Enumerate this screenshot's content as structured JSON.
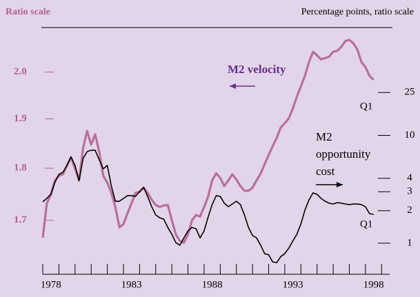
{
  "chart_data": {
    "type": "line",
    "left_axis_label": "Ratio scale",
    "right_axis_label": "Percentage points, ratio scale",
    "annotations": [
      "Q1",
      "Q1"
    ],
    "x": [
      1978,
      1978.25,
      1978.5,
      1978.75,
      1979,
      1979.25,
      1979.5,
      1979.75,
      1980,
      1980.25,
      1980.5,
      1980.75,
      1981,
      1981.25,
      1981.5,
      1981.75,
      1982,
      1982.25,
      1982.5,
      1982.75,
      1983,
      1983.25,
      1983.5,
      1983.75,
      1984,
      1984.25,
      1984.5,
      1984.75,
      1985,
      1985.25,
      1985.5,
      1985.75,
      1986,
      1986.25,
      1986.5,
      1986.75,
      1987,
      1987.25,
      1987.5,
      1987.75,
      1988,
      1988.25,
      1988.5,
      1988.75,
      1989,
      1989.25,
      1989.5,
      1989.75,
      1990,
      1990.25,
      1990.5,
      1990.75,
      1991,
      1991.25,
      1991.5,
      1991.75,
      1992,
      1992.25,
      1992.5,
      1992.75,
      1993,
      1993.25,
      1993.5,
      1993.75,
      1994,
      1994.25,
      1994.5,
      1994.75,
      1995,
      1995.25,
      1995.5,
      1995.75,
      1996,
      1996.25,
      1996.5,
      1996.75,
      1997,
      1997.25,
      1997.5,
      1997.75,
      1998,
      1998.25,
      1998.5
    ],
    "series": [
      {
        "name": "M2 velocity",
        "color": "#b86f9a",
        "axis": "y",
        "values": [
          1.668,
          1.732,
          1.748,
          1.776,
          1.785,
          1.788,
          1.805,
          1.822,
          1.799,
          1.776,
          1.84,
          1.875,
          1.847,
          1.868,
          1.833,
          1.785,
          1.772,
          1.752,
          1.725,
          1.687,
          1.693,
          1.713,
          1.732,
          1.752,
          1.754,
          1.762,
          1.752,
          1.739,
          1.729,
          1.725,
          1.728,
          1.729,
          1.7,
          1.674,
          1.662,
          1.659,
          1.674,
          1.7,
          1.71,
          1.707,
          1.725,
          1.745,
          1.776,
          1.79,
          1.781,
          1.765,
          1.776,
          1.788,
          1.778,
          1.765,
          1.756,
          1.756,
          1.762,
          1.776,
          1.789,
          1.808,
          1.826,
          1.844,
          1.861,
          1.882,
          1.891,
          1.901,
          1.922,
          1.947,
          1.969,
          1.992,
          2.022,
          2.045,
          2.037,
          2.028,
          2.031,
          2.034,
          2.045,
          2.047,
          2.056,
          2.069,
          2.072,
          2.064,
          2.05,
          2.022,
          2.011,
          1.992,
          1.983
        ]
      },
      {
        "name": "M2 opportunity cost",
        "color": "#000000",
        "axis": "y2",
        "values": [
          2.42,
          2.6,
          2.84,
          3.65,
          4.35,
          4.55,
          5.27,
          6.29,
          5.27,
          3.81,
          6.1,
          7.07,
          7.28,
          7.28,
          5.93,
          4.89,
          5.27,
          3.39,
          2.45,
          2.45,
          2.6,
          2.76,
          2.76,
          2.72,
          3.01,
          3.29,
          2.72,
          2.18,
          1.83,
          1.72,
          1.67,
          1.4,
          1.21,
          1.01,
          0.96,
          1.12,
          1.3,
          1.4,
          1.36,
          1.12,
          1.3,
          1.75,
          2.28,
          2.76,
          2.72,
          2.35,
          2.18,
          2.31,
          2.45,
          2.28,
          1.83,
          1.4,
          1.18,
          1.12,
          0.96,
          0.8,
          0.78,
          0.67,
          0.66,
          0.75,
          0.8,
          0.9,
          1.05,
          1.21,
          1.51,
          2.03,
          2.52,
          2.93,
          2.84,
          2.6,
          2.45,
          2.35,
          2.31,
          2.38,
          2.35,
          2.31,
          2.28,
          2.31,
          2.31,
          2.28,
          2.18,
          1.88,
          1.85
        ]
      }
    ],
    "xlim": [
      1978,
      1999.5
    ],
    "xticks": [
      1978,
      1983,
      1988,
      1993,
      1998
    ],
    "xticks_minor": [
      1978,
      1979,
      1980,
      1981,
      1982,
      1983,
      1984,
      1985,
      1986,
      1987,
      1988,
      1989,
      1990,
      1991,
      1992,
      1993,
      1994,
      1995,
      1996,
      1997,
      1998,
      1999
    ],
    "ylim": [
      1.6,
      2.1
    ],
    "ylog": true,
    "yticks": [
      1.7,
      1.8,
      1.9,
      {
        "value": 2,
        "label": "2.0"
      }
    ],
    "y2lim": [
      0.5,
      100
    ],
    "y2log": true,
    "y2ticks": [
      1,
      2,
      3,
      4,
      10,
      25
    ],
    "grid": false
  }
}
